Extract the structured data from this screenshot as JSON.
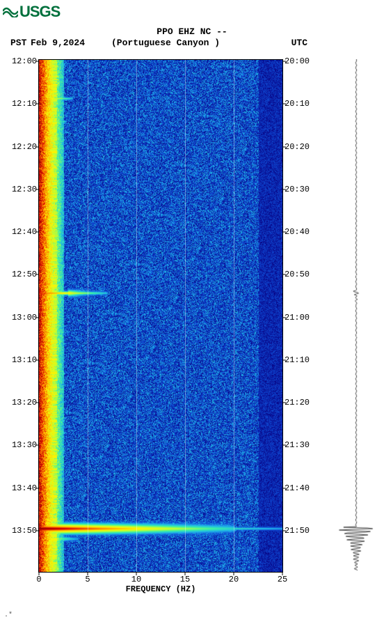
{
  "logo": {
    "text": "USGS",
    "color": "#00703c"
  },
  "header": {
    "line1": "PPO EHZ NC --",
    "tz_left": "PST",
    "date": "Feb 9,2024",
    "station_loc": "(Portuguese Canyon )",
    "tz_right": "UTC"
  },
  "spectrogram": {
    "type": "spectrogram",
    "xlabel": "FREQUENCY (HZ)",
    "xlim": [
      0,
      25
    ],
    "xticks": [
      0,
      5,
      10,
      15,
      20,
      25
    ],
    "grid_x": [
      5,
      10,
      15,
      20
    ],
    "y_left_ticks": [
      "12:00",
      "12:10",
      "12:20",
      "12:30",
      "12:40",
      "12:50",
      "13:00",
      "13:10",
      "13:20",
      "13:30",
      "13:40",
      "13:50"
    ],
    "y_right_ticks": [
      "20:00",
      "20:10",
      "20:20",
      "20:30",
      "20:40",
      "20:50",
      "21:00",
      "21:10",
      "21:20",
      "21:30",
      "21:40",
      "21:50"
    ],
    "y_tick_count": 12,
    "background_color": "#0a2db8",
    "colormap_stops": [
      "#08007f",
      "#0a2db8",
      "#1253d8",
      "#1fb5e9",
      "#39f0a7",
      "#b7ff3a",
      "#fef400",
      "#ff8d00",
      "#d60000",
      "#720000"
    ],
    "noise_band": {
      "freq_range": [
        0.0,
        1.8
      ],
      "intensity": 0.55
    },
    "low_freq_strong_band": {
      "freq_range": [
        0.2,
        2.5
      ],
      "intensity": 0.95
    },
    "speckle_level": 0.18,
    "high_freq_rolloff": 22.5,
    "events": [
      {
        "time_frac": 0.075,
        "freq_range": [
          0,
          3.5
        ],
        "intensity": 0.88,
        "width": 0.006
      },
      {
        "time_frac": 0.12,
        "freq_range": [
          0,
          2.8
        ],
        "intensity": 0.9,
        "width": 0.004
      },
      {
        "time_frac": 0.455,
        "freq_range": [
          0,
          7.0
        ],
        "intensity": 0.93,
        "width": 0.007
      },
      {
        "time_frac": 0.455,
        "freq_range": [
          3,
          5.5
        ],
        "intensity": 0.7,
        "width": 0.012
      },
      {
        "time_frac": 0.915,
        "freq_range": [
          0,
          20
        ],
        "intensity": 1.0,
        "width": 0.018
      },
      {
        "time_frac": 0.915,
        "freq_range": [
          0,
          25
        ],
        "intensity": 0.85,
        "width": 0.006
      },
      {
        "time_frac": 0.935,
        "freq_range": [
          0,
          4
        ],
        "intensity": 0.75,
        "width": 0.01
      }
    ]
  },
  "seismogram": {
    "color": "#000000",
    "baseline_noise": 0.05,
    "events": [
      {
        "time_frac": 0.915,
        "amplitude": 1.0,
        "decay": 0.03
      },
      {
        "time_frac": 0.455,
        "amplitude": 0.15,
        "decay": 0.01
      }
    ]
  },
  "footer_mark": ".*"
}
